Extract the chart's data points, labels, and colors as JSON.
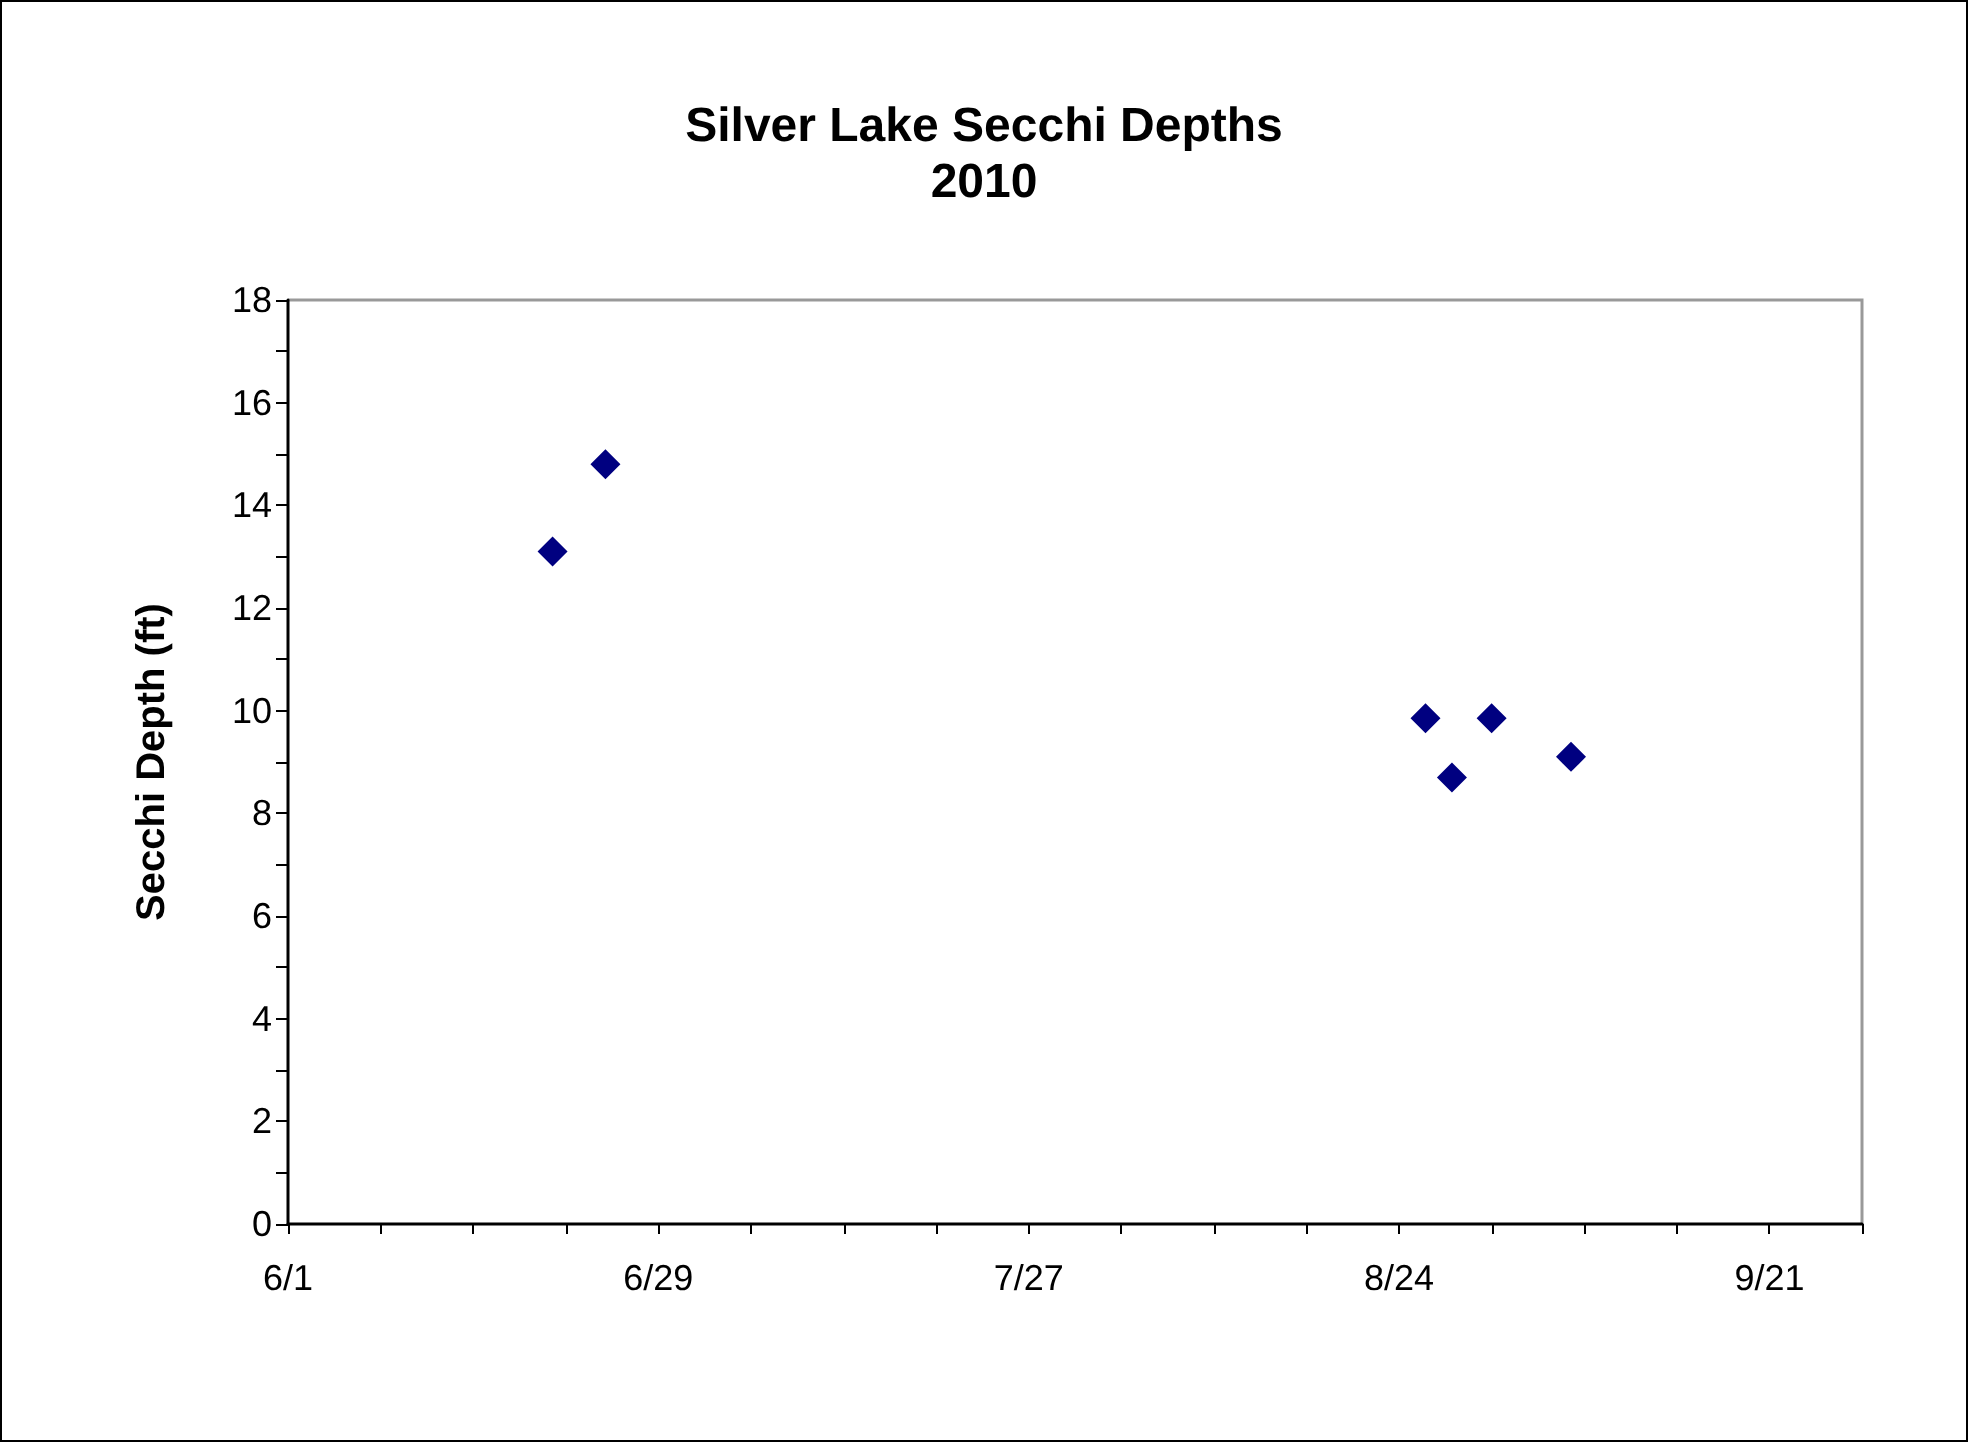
{
  "chart_data": {
    "type": "scatter",
    "title": "Silver Lake Secchi Depths",
    "subtitle": "2010",
    "ylabel": "Secchi Depth (ft)",
    "x": [
      "2010-06-21",
      "2010-06-25",
      "2010-08-26",
      "2010-08-28",
      "2010-08-31",
      "2010-09-06"
    ],
    "series": [
      {
        "color": "#000080",
        "values": [
          13.1,
          14.8,
          9.85,
          8.7,
          9.85,
          9.1
        ]
      }
    ],
    "marker": "diamond",
    "grid": false,
    "xlim": [
      "2010-06-01",
      "2010-09-28"
    ],
    "xticks": [
      {
        "value": "2010-06-01",
        "label": "6/1"
      },
      {
        "value": "2010-06-08",
        "label": null
      },
      {
        "value": "2010-06-15",
        "label": null
      },
      {
        "value": "2010-06-22",
        "label": null
      },
      {
        "value": "2010-06-29",
        "label": "6/29"
      },
      {
        "value": "2010-07-06",
        "label": null
      },
      {
        "value": "2010-07-13",
        "label": null
      },
      {
        "value": "2010-07-20",
        "label": null
      },
      {
        "value": "2010-07-27",
        "label": "7/27"
      },
      {
        "value": "2010-08-03",
        "label": null
      },
      {
        "value": "2010-08-10",
        "label": null
      },
      {
        "value": "2010-08-17",
        "label": null
      },
      {
        "value": "2010-08-24",
        "label": "8/24"
      },
      {
        "value": "2010-08-31",
        "label": null
      },
      {
        "value": "2010-09-07",
        "label": null
      },
      {
        "value": "2010-09-14",
        "label": null
      },
      {
        "value": "2010-09-21",
        "label": "9/21"
      },
      {
        "value": "2010-09-28",
        "label": null
      }
    ],
    "ylim": [
      0,
      18
    ],
    "yticks": [
      0,
      {
        "value": 1,
        "label": null
      },
      2,
      {
        "value": 3,
        "label": null
      },
      4,
      {
        "value": 5,
        "label": null
      },
      6,
      {
        "value": 7,
        "label": null
      },
      8,
      {
        "value": 9,
        "label": null
      },
      10,
      {
        "value": 11,
        "label": null
      },
      12,
      {
        "value": 13,
        "label": null
      },
      14,
      {
        "value": 15,
        "label": null
      },
      16,
      {
        "value": 17,
        "label": null
      },
      18
    ]
  }
}
